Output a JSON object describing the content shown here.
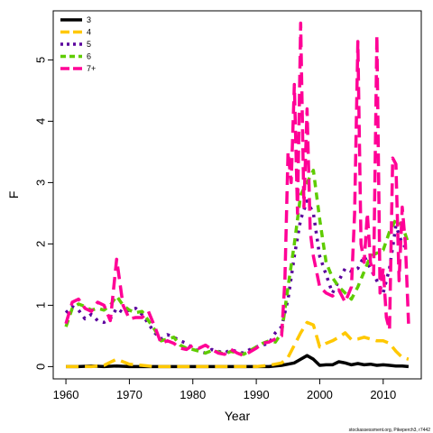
{
  "chart_data": {
    "type": "line",
    "xlabel": "Year",
    "ylabel": "F",
    "xlim": [
      1958,
      2016
    ],
    "ylim": [
      -0.2,
      5.8
    ],
    "xticks": [
      1960,
      1970,
      1980,
      1990,
      2000,
      2010
    ],
    "yticks": [
      0,
      1,
      2,
      3,
      4,
      5
    ],
    "legend_position": "top-left",
    "grid": false,
    "footnote": "stockassessment.org, Pikeperch3, r7442",
    "series": [
      {
        "name": "3",
        "color": "#000000",
        "dash": "solid",
        "x": [
          1960,
          1962,
          1964,
          1966,
          1968,
          1970,
          1972,
          1974,
          1976,
          1978,
          1980,
          1982,
          1984,
          1986,
          1988,
          1990,
          1992,
          1994,
          1995,
          1996,
          1997,
          1998,
          1999,
          2000,
          2001,
          2002,
          2003,
          2004,
          2005,
          2006,
          2007,
          2008,
          2009,
          2010,
          2011,
          2012,
          2013,
          2014
        ],
        "y": [
          0,
          0,
          0.01,
          0,
          0.01,
          0,
          0,
          0,
          0,
          0,
          0,
          0,
          0,
          0,
          0,
          0,
          0,
          0.02,
          0.04,
          0.06,
          0.12,
          0.18,
          0.12,
          0.02,
          0.03,
          0.03,
          0.08,
          0.06,
          0.03,
          0.05,
          0.03,
          0.04,
          0.02,
          0.03,
          0.02,
          0.01,
          0.01,
          0
        ]
      },
      {
        "name": "4",
        "color": "#FFC800",
        "dash": "longdash",
        "x": [
          1960,
          1964,
          1966,
          1968,
          1970,
          1972,
          1974,
          1976,
          1980,
          1984,
          1988,
          1990,
          1992,
          1994,
          1995,
          1996,
          1997,
          1998,
          1999,
          2000,
          2001,
          2002,
          2003,
          2004,
          2005,
          2006,
          2007,
          2008,
          2009,
          2010,
          2011,
          2012,
          2013,
          2014
        ],
        "y": [
          0,
          0,
          0.02,
          0.12,
          0.04,
          0.02,
          0,
          0,
          0,
          0,
          0,
          0,
          0.02,
          0.06,
          0.15,
          0.35,
          0.55,
          0.72,
          0.68,
          0.32,
          0.38,
          0.42,
          0.48,
          0.55,
          0.44,
          0.45,
          0.48,
          0.45,
          0.42,
          0.42,
          0.38,
          0.25,
          0.15,
          0.12
        ]
      },
      {
        "name": "5",
        "color": "#5A009D",
        "dash": "dotted",
        "x": [
          1960,
          1961,
          1962,
          1963,
          1964,
          1965,
          1966,
          1967,
          1968,
          1969,
          1970,
          1971,
          1972,
          1973,
          1974,
          1975,
          1976,
          1977,
          1978,
          1979,
          1980,
          1981,
          1982,
          1983,
          1984,
          1985,
          1986,
          1987,
          1988,
          1989,
          1990,
          1991,
          1992,
          1993,
          1994,
          1995,
          1996,
          1997,
          1998,
          1999,
          2000,
          2001,
          2002,
          2003,
          2004,
          2005,
          2006,
          2007,
          2008,
          2009,
          2010,
          2011,
          2012,
          2013,
          2014
        ],
        "y": [
          0.88,
          0.98,
          0.92,
          0.78,
          0.85,
          0.75,
          0.72,
          0.78,
          0.95,
          0.88,
          0.92,
          0.95,
          0.85,
          0.7,
          0.55,
          0.45,
          0.52,
          0.48,
          0.42,
          0.38,
          0.3,
          0.25,
          0.22,
          0.28,
          0.25,
          0.22,
          0.28,
          0.24,
          0.22,
          0.28,
          0.32,
          0.35,
          0.38,
          0.55,
          0.65,
          1.1,
          1.8,
          2.4,
          2.7,
          2.5,
          1.8,
          1.5,
          1.2,
          1.4,
          1.6,
          1.55,
          1.6,
          1.8,
          1.6,
          1.4,
          1.2,
          1.6,
          2.3,
          2.0,
          1.9
        ]
      },
      {
        "name": "6",
        "color": "#5FCC00",
        "dash": "shortdash",
        "x": [
          1960,
          1961,
          1962,
          1963,
          1964,
          1965,
          1966,
          1967,
          1968,
          1969,
          1970,
          1971,
          1972,
          1973,
          1974,
          1975,
          1976,
          1977,
          1978,
          1979,
          1980,
          1981,
          1982,
          1983,
          1984,
          1985,
          1986,
          1987,
          1988,
          1989,
          1990,
          1991,
          1992,
          1993,
          1994,
          1995,
          1996,
          1997,
          1998,
          1999,
          2000,
          2001,
          2002,
          2003,
          2004,
          2005,
          2006,
          2007,
          2008,
          2009,
          2010,
          2011,
          2012,
          2013,
          2014
        ],
        "y": [
          0.65,
          0.95,
          1.02,
          0.98,
          0.92,
          0.95,
          0.92,
          1.0,
          1.15,
          1.0,
          0.92,
          0.88,
          0.9,
          0.75,
          0.6,
          0.42,
          0.45,
          0.48,
          0.35,
          0.3,
          0.28,
          0.25,
          0.22,
          0.26,
          0.24,
          0.2,
          0.25,
          0.22,
          0.2,
          0.26,
          0.32,
          0.38,
          0.42,
          0.4,
          0.55,
          1.3,
          2.0,
          2.8,
          3.0,
          3.2,
          2.4,
          1.7,
          1.45,
          1.3,
          1.2,
          1.1,
          1.3,
          1.55,
          1.8,
          1.85,
          1.9,
          2.2,
          2.4,
          2.3,
          2.0
        ]
      },
      {
        "name": "7+",
        "color": "#FF0096",
        "dash": "longdash",
        "x": [
          1960,
          1961,
          1962,
          1963,
          1964,
          1965,
          1966,
          1967,
          1968,
          1969,
          1970,
          1971,
          1972,
          1973,
          1974,
          1975,
          1976,
          1977,
          1978,
          1979,
          1980,
          1981,
          1982,
          1983,
          1984,
          1985,
          1986,
          1987,
          1988,
          1989,
          1990,
          1991,
          1992,
          1993,
          1994,
          1994.5,
          1995,
          1995.5,
          1996,
          1996.5,
          1997,
          1997.5,
          1998,
          1998.5,
          1999,
          2000,
          2001,
          2002,
          2003,
          2004,
          2005,
          2005.5,
          2006,
          2006.5,
          2007,
          2007.5,
          2008,
          2008.5,
          2009,
          2009.5,
          2010,
          2010.5,
          2011,
          2011.5,
          2012,
          2012.5,
          2013,
          2013.5,
          2014
        ],
        "y": [
          0.7,
          1.05,
          1.1,
          0.95,
          0.9,
          1.05,
          1.0,
          0.75,
          1.75,
          1.0,
          0.78,
          0.8,
          0.8,
          0.9,
          0.65,
          0.38,
          0.42,
          0.38,
          0.3,
          0.28,
          0.35,
          0.3,
          0.35,
          0.28,
          0.22,
          0.2,
          0.28,
          0.22,
          0.18,
          0.24,
          0.3,
          0.38,
          0.4,
          0.45,
          0.5,
          1.4,
          3.5,
          3.0,
          4.6,
          2.5,
          5.6,
          2.6,
          4.2,
          2.2,
          1.8,
          1.3,
          1.2,
          1.15,
          1.25,
          1.05,
          1.3,
          2.5,
          5.3,
          2.0,
          1.7,
          2.5,
          1.7,
          1.5,
          5.4,
          1.2,
          1.6,
          0.8,
          0.6,
          3.4,
          3.3,
          1.4,
          2.6,
          2.0,
          0.7
        ]
      }
    ]
  }
}
